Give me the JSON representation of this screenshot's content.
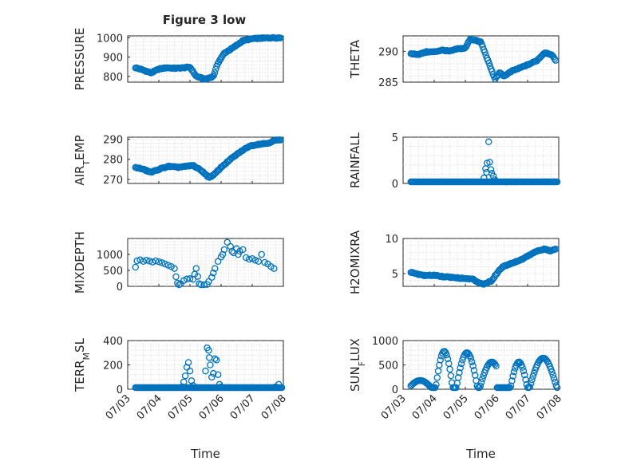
{
  "figure": {
    "title": "Figure 3 low"
  },
  "chart_data": [
    {
      "type": "scatter",
      "ylabel": "PRESSURE",
      "xlim": [
        3.0,
        8.0
      ],
      "ylim": [
        770,
        1010
      ],
      "yticks": [
        800,
        900,
        1000
      ],
      "xtick_labels_shown": false,
      "keypoints_x": [
        3.25,
        3.45,
        3.75,
        4.0,
        4.25,
        4.5,
        4.75,
        5.0,
        5.2,
        5.5,
        5.75,
        5.9,
        6.1,
        6.4,
        6.7,
        7.0,
        7.3,
        7.6,
        7.9
      ],
      "keypoints_y": [
        845,
        835,
        818,
        838,
        845,
        842,
        844,
        848,
        800,
        785,
        800,
        870,
        920,
        950,
        985,
        995,
        998,
        1000,
        1000
      ],
      "n_points": 140
    },
    {
      "type": "scatter",
      "ylabel": "THETA",
      "xlim": [
        3.0,
        8.0
      ],
      "ylim": [
        285,
        292.5
      ],
      "yticks": [
        285,
        290
      ],
      "xtick_labels_shown": false,
      "keypoints_x": [
        3.25,
        3.5,
        3.75,
        4.0,
        4.25,
        4.5,
        4.75,
        5.0,
        5.15,
        5.3,
        5.5,
        5.65,
        5.8,
        5.95,
        6.1,
        6.25,
        6.5,
        6.75,
        7.0,
        7.3,
        7.55,
        7.75,
        7.9
      ],
      "keypoints_y": [
        289.6,
        289.5,
        289.9,
        289.9,
        290.2,
        290.0,
        290.4,
        290.5,
        292.0,
        291.8,
        291.5,
        289.5,
        287.5,
        285.5,
        286.5,
        286.0,
        286.8,
        287.3,
        287.8,
        288.5,
        289.8,
        289.5,
        288.6
      ],
      "n_points": 140
    },
    {
      "type": "scatter",
      "ylabel": "AIR_TEMP",
      "xlim": [
        3.0,
        8.0
      ],
      "ylim": [
        268,
        291
      ],
      "yticks": [
        270,
        280,
        290
      ],
      "xtick_labels_shown": false,
      "keypoints_x": [
        3.25,
        3.5,
        3.75,
        4.0,
        4.3,
        4.6,
        4.9,
        5.1,
        5.4,
        5.6,
        5.75,
        6.0,
        6.3,
        6.6,
        6.9,
        7.2,
        7.5,
        7.75,
        7.9
      ],
      "keypoints_y": [
        276.0,
        275.0,
        273.5,
        275.0,
        276.5,
        276.0,
        276.5,
        277.0,
        274.0,
        271.0,
        272.0,
        276.0,
        280.0,
        283.5,
        286.5,
        287.5,
        288.0,
        289.5,
        289.5
      ],
      "n_points": 140
    },
    {
      "type": "scatter",
      "ylabel": "RAINFALL",
      "xlim": [
        3.0,
        8.0
      ],
      "ylim": [
        0,
        5
      ],
      "yticks": [
        0,
        5
      ],
      "xtick_labels_shown": false,
      "points": [
        [
          5.75,
          4.5
        ],
        [
          5.7,
          2.2
        ],
        [
          5.78,
          2.3
        ],
        [
          5.65,
          1.6
        ],
        [
          5.82,
          1.5
        ],
        [
          5.68,
          1.2
        ],
        [
          5.85,
          1.1
        ],
        [
          5.6,
          0.6
        ],
        [
          5.9,
          0.8
        ],
        [
          5.95,
          0.4
        ],
        [
          6.0,
          0.2
        ],
        [
          6.3,
          0.1
        ],
        [
          6.6,
          0.05
        ],
        [
          7.6,
          0.1
        ],
        [
          7.85,
          0.05
        ]
      ],
      "baseline_x_range": [
        3.25,
        7.95
      ],
      "baseline_value": 0,
      "n_points": 140
    },
    {
      "type": "scatter",
      "ylabel": "MIXDEPTH",
      "xlim": [
        3.0,
        8.0
      ],
      "ylim": [
        0,
        1500
      ],
      "yticks": [
        0,
        500,
        1000
      ],
      "xtick_labels_shown": false,
      "points": [
        [
          3.25,
          600
        ],
        [
          3.3,
          800
        ],
        [
          3.4,
          830
        ],
        [
          3.5,
          780
        ],
        [
          3.6,
          820
        ],
        [
          3.7,
          790
        ],
        [
          3.8,
          760
        ],
        [
          3.9,
          800
        ],
        [
          4.0,
          770
        ],
        [
          4.1,
          740
        ],
        [
          4.2,
          700
        ],
        [
          4.3,
          660
        ],
        [
          4.4,
          620
        ],
        [
          4.5,
          560
        ],
        [
          4.55,
          300
        ],
        [
          4.6,
          100
        ],
        [
          4.65,
          30
        ],
        [
          4.7,
          80
        ],
        [
          4.8,
          180
        ],
        [
          4.9,
          230
        ],
        [
          5.0,
          240
        ],
        [
          5.1,
          220
        ],
        [
          5.15,
          380
        ],
        [
          5.2,
          560
        ],
        [
          5.25,
          310
        ],
        [
          5.3,
          80
        ],
        [
          5.35,
          20
        ],
        [
          5.45,
          40
        ],
        [
          5.55,
          60
        ],
        [
          5.6,
          150
        ],
        [
          5.7,
          280
        ],
        [
          5.75,
          420
        ],
        [
          5.8,
          560
        ],
        [
          5.9,
          780
        ],
        [
          6.0,
          920
        ],
        [
          6.05,
          1000
        ],
        [
          6.1,
          1150
        ],
        [
          6.2,
          1380
        ],
        [
          6.3,
          1250
        ],
        [
          6.35,
          1100
        ],
        [
          6.4,
          1050
        ],
        [
          6.5,
          1180
        ],
        [
          6.55,
          1000
        ],
        [
          6.6,
          1100
        ],
        [
          6.7,
          1150
        ],
        [
          6.8,
          900
        ],
        [
          6.9,
          850
        ],
        [
          7.0,
          870
        ],
        [
          7.1,
          820
        ],
        [
          7.2,
          780
        ],
        [
          7.3,
          1000
        ],
        [
          7.4,
          750
        ],
        [
          7.5,
          700
        ],
        [
          7.6,
          620
        ],
        [
          7.7,
          560
        ]
      ],
      "n_points": 140
    },
    {
      "type": "scatter",
      "ylabel": "H2OMIXRA",
      "xlim": [
        3.0,
        8.0
      ],
      "ylim": [
        3.2,
        10
      ],
      "yticks": [
        5,
        10
      ],
      "xtick_labels_shown": false,
      "keypoints_x": [
        3.25,
        3.5,
        3.75,
        4.0,
        4.25,
        4.5,
        4.75,
        5.0,
        5.25,
        5.4,
        5.6,
        5.85,
        6.0,
        6.2,
        6.5,
        6.8,
        7.0,
        7.3,
        7.55,
        7.75,
        7.9
      ],
      "keypoints_y": [
        5.2,
        4.9,
        4.7,
        4.8,
        4.6,
        4.5,
        4.4,
        4.3,
        4.2,
        3.8,
        3.5,
        4.0,
        5.0,
        6.0,
        6.5,
        7.0,
        7.5,
        8.2,
        8.5,
        8.2,
        8.5
      ],
      "n_points": 140
    },
    {
      "type": "scatter",
      "ylabel": "TERR_MSL",
      "xlabel": "Time",
      "xlim": [
        3.0,
        8.0
      ],
      "ylim": [
        0,
        400
      ],
      "yticks": [
        0,
        200,
        400
      ],
      "xticks": [
        3,
        4,
        5,
        6,
        7,
        8
      ],
      "xtick_labels": [
        "07/03",
        "07/04",
        "07/05",
        "07/06",
        "07/07",
        "07/08"
      ],
      "points": [
        [
          4.75,
          20
        ],
        [
          4.8,
          60
        ],
        [
          4.85,
          110
        ],
        [
          4.9,
          180
        ],
        [
          4.95,
          220
        ],
        [
          5.0,
          150
        ],
        [
          5.05,
          70
        ],
        [
          5.1,
          30
        ],
        [
          5.5,
          150
        ],
        [
          5.55,
          340
        ],
        [
          5.6,
          320
        ],
        [
          5.62,
          260
        ],
        [
          5.65,
          200
        ],
        [
          5.7,
          100
        ],
        [
          5.75,
          130
        ],
        [
          5.8,
          250
        ],
        [
          5.85,
          240
        ],
        [
          5.9,
          120
        ],
        [
          5.95,
          40
        ],
        [
          6.0,
          20
        ],
        [
          6.1,
          10
        ],
        [
          6.25,
          5
        ],
        [
          6.5,
          10
        ],
        [
          6.75,
          5
        ],
        [
          7.0,
          5
        ],
        [
          7.5,
          10
        ],
        [
          7.75,
          20
        ],
        [
          7.85,
          40
        ]
      ],
      "baseline_x_range": [
        3.25,
        7.95
      ],
      "baseline_value": 0,
      "n_points": 140
    },
    {
      "type": "scatter",
      "ylabel": "SUN_FLUX",
      "xlabel": "Time",
      "xlim": [
        3.0,
        8.0
      ],
      "ylim": [
        0,
        1000
      ],
      "yticks": [
        0,
        500,
        1000
      ],
      "xticks": [
        3,
        4,
        5,
        6,
        7,
        8
      ],
      "xtick_labels": [
        "07/03",
        "07/04",
        "07/05",
        "07/06",
        "07/07",
        "07/08"
      ],
      "daily_peaks": [
        {
          "start": 3.25,
          "end": 3.95,
          "center": 3.55,
          "peak": 180
        },
        {
          "start": 4.05,
          "end": 4.6,
          "center": 4.32,
          "peak": 780
        },
        {
          "start": 4.7,
          "end": 5.4,
          "center": 5.05,
          "peak": 750
        },
        {
          "start": 5.45,
          "end": 6.0,
          "center": 5.85,
          "peak": 560
        },
        {
          "start": 6.45,
          "end": 7.0,
          "center": 6.72,
          "peak": 560
        },
        {
          "start": 7.05,
          "end": 7.95,
          "center": 7.5,
          "peak": 640
        }
      ],
      "n_points": 140
    }
  ]
}
